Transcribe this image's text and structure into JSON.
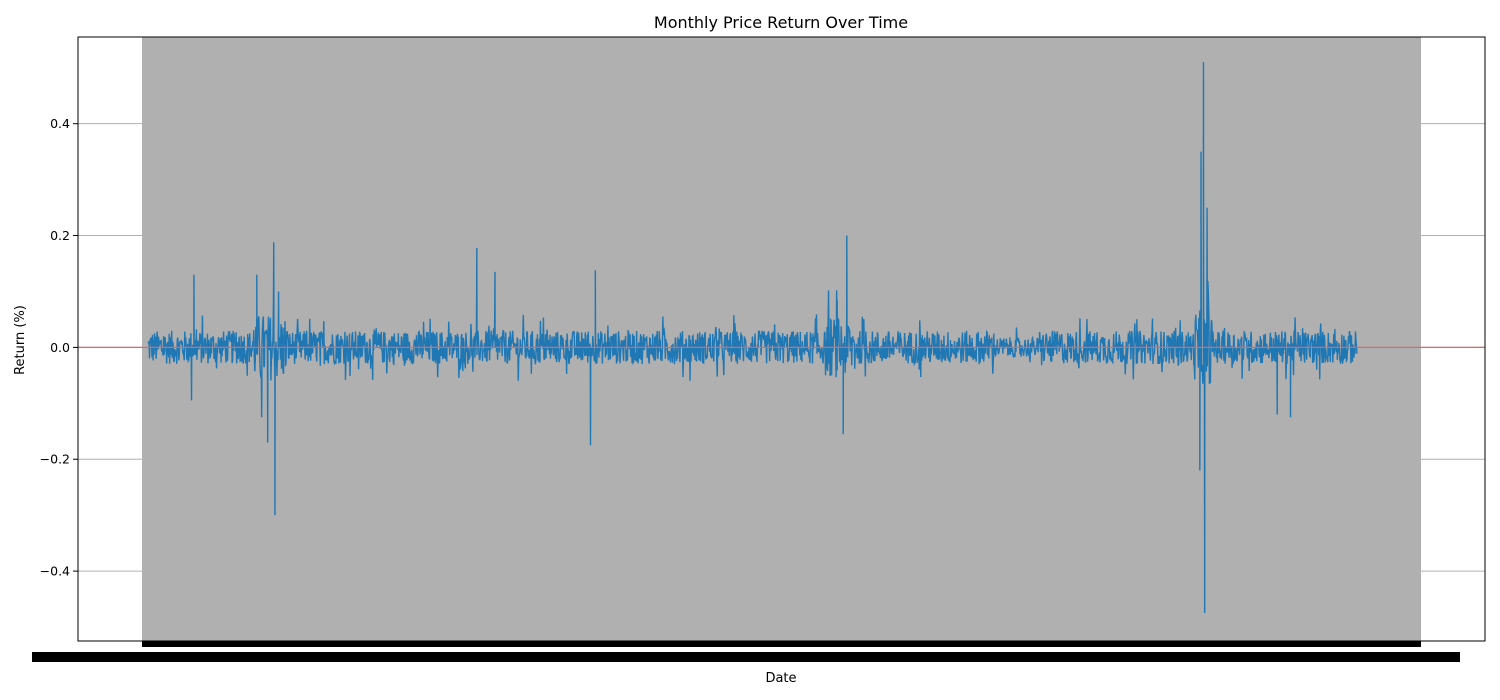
{
  "chart_data": {
    "type": "line",
    "title": "Monthly Price Return Over Time",
    "xlabel": "Date",
    "ylabel": "Return (%)",
    "ylim": [
      -0.525,
      0.555
    ],
    "yticks": [
      -0.4,
      -0.2,
      0.0,
      0.2,
      0.4
    ],
    "ytick_labels": [
      "−0.4",
      "−0.2",
      "0.0",
      "0.2",
      "0.4"
    ],
    "grid": "horizontal",
    "x_tick_labels_overlapping": true,
    "colors": {
      "series": "#1f77b4",
      "zero_line": "#e06666",
      "shaded_band": "#b0b0b0",
      "grid": "#b0b0b0"
    },
    "reference_line": {
      "y": 0.0
    },
    "series": [
      {
        "x_range_index": [
          0,
          1000
        ],
        "baseline_amplitude": 0.03,
        "events": [
          {
            "x_index": 38,
            "value": 0.13
          },
          {
            "x_index": 36,
            "value": -0.095
          },
          {
            "x_index": 90,
            "value": 0.13
          },
          {
            "x_index": 94,
            "value": -0.125
          },
          {
            "x_index": 99,
            "value": -0.17
          },
          {
            "x_index": 104,
            "value": 0.188
          },
          {
            "x_index": 105,
            "value": -0.3
          },
          {
            "x_index": 108,
            "value": 0.1
          },
          {
            "x_index": 272,
            "value": 0.178
          },
          {
            "x_index": 287,
            "value": 0.135
          },
          {
            "x_index": 366,
            "value": -0.175
          },
          {
            "x_index": 370,
            "value": 0.138
          },
          {
            "x_index": 578,
            "value": 0.2
          },
          {
            "x_index": 575,
            "value": -0.155
          },
          {
            "x_index": 570,
            "value": 0.085
          },
          {
            "x_index": 871,
            "value": 0.35
          },
          {
            "x_index": 873,
            "value": 0.51
          },
          {
            "x_index": 874,
            "value": -0.475
          },
          {
            "x_index": 870,
            "value": -0.22
          },
          {
            "x_index": 876,
            "value": 0.25
          },
          {
            "x_index": 934,
            "value": -0.12
          },
          {
            "x_index": 945,
            "value": -0.125
          }
        ]
      }
    ]
  }
}
